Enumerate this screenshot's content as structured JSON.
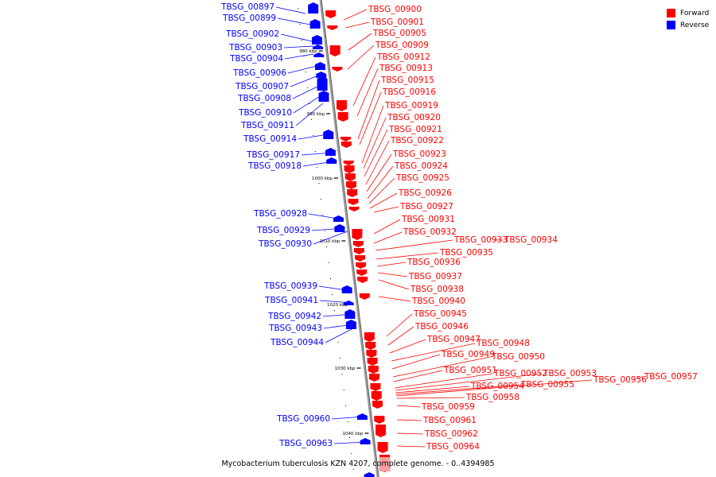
{
  "caption": "Mycobacterium tuberculosis KZN 4207, complete genome. - 0..4394985",
  "legend": [
    {
      "label": "Forward",
      "color": "#ff0000"
    },
    {
      "label": "Reverse",
      "color": "#0000ff"
    }
  ],
  "colors": {
    "forward": "#ff0000",
    "reverse": "#0000ff",
    "backbone": "#9a9a9a"
  },
  "ticks": [
    "980 kbp",
    "990 kbp",
    "1000 kbp",
    "1010 kbp",
    "1020 kbp",
    "1030 kbp",
    "1040 kbp"
  ],
  "genes": [
    {
      "name": "TBSG_00897",
      "strand": "reverse"
    },
    {
      "name": "TBSG_00899",
      "strand": "reverse"
    },
    {
      "name": "TBSG_00902",
      "strand": "reverse"
    },
    {
      "name": "TBSG_00903",
      "strand": "reverse"
    },
    {
      "name": "TBSG_00904",
      "strand": "reverse"
    },
    {
      "name": "TBSG_00906",
      "strand": "reverse"
    },
    {
      "name": "TBSG_00907",
      "strand": "reverse"
    },
    {
      "name": "TBSG_00908",
      "strand": "reverse"
    },
    {
      "name": "TBSG_00910",
      "strand": "reverse"
    },
    {
      "name": "TBSG_00911",
      "strand": "reverse"
    },
    {
      "name": "TBSG_00914",
      "strand": "reverse"
    },
    {
      "name": "TBSG_00917",
      "strand": "reverse"
    },
    {
      "name": "TBSG_00918",
      "strand": "reverse"
    },
    {
      "name": "TBSG_00928",
      "strand": "reverse"
    },
    {
      "name": "TBSG_00929",
      "strand": "reverse"
    },
    {
      "name": "TBSG_00930",
      "strand": "reverse"
    },
    {
      "name": "TBSG_00939",
      "strand": "reverse"
    },
    {
      "name": "TBSG_00941",
      "strand": "reverse"
    },
    {
      "name": "TBSG_00942",
      "strand": "reverse"
    },
    {
      "name": "TBSG_00943",
      "strand": "reverse"
    },
    {
      "name": "TBSG_00944",
      "strand": "reverse"
    },
    {
      "name": "TBSG_00960",
      "strand": "reverse"
    },
    {
      "name": "TBSG_00963",
      "strand": "reverse"
    },
    {
      "name": "TBSG_00900",
      "strand": "forward"
    },
    {
      "name": "TBSG_00901",
      "strand": "forward"
    },
    {
      "name": "TBSG_00905",
      "strand": "forward"
    },
    {
      "name": "TBSG_00909",
      "strand": "forward"
    },
    {
      "name": "TBSG_00912",
      "strand": "forward"
    },
    {
      "name": "TBSG_00913",
      "strand": "forward"
    },
    {
      "name": "TBSG_00915",
      "strand": "forward"
    },
    {
      "name": "TBSG_00916",
      "strand": "forward"
    },
    {
      "name": "TBSG_00919",
      "strand": "forward"
    },
    {
      "name": "TBSG_00920",
      "strand": "forward"
    },
    {
      "name": "TBSG_00921",
      "strand": "forward"
    },
    {
      "name": "TBSG_00922",
      "strand": "forward"
    },
    {
      "name": "TBSG_00923",
      "strand": "forward"
    },
    {
      "name": "TBSG_00924",
      "strand": "forward"
    },
    {
      "name": "TBSG_00925",
      "strand": "forward"
    },
    {
      "name": "TBSG_00926",
      "strand": "forward"
    },
    {
      "name": "TBSG_00927",
      "strand": "forward"
    },
    {
      "name": "TBSG_00931",
      "strand": "forward"
    },
    {
      "name": "TBSG_00932",
      "strand": "forward"
    },
    {
      "name": "TBSG_00933",
      "strand": "forward"
    },
    {
      "name": "TBSG_00934",
      "strand": "forward"
    },
    {
      "name": "TBSG_00935",
      "strand": "forward"
    },
    {
      "name": "TBSG_00936",
      "strand": "forward"
    },
    {
      "name": "TBSG_00937",
      "strand": "forward"
    },
    {
      "name": "TBSG_00938",
      "strand": "forward"
    },
    {
      "name": "TBSG_00940",
      "strand": "forward"
    },
    {
      "name": "TBSG_00945",
      "strand": "forward"
    },
    {
      "name": "TBSG_00946",
      "strand": "forward"
    },
    {
      "name": "TBSG_00947",
      "strand": "forward"
    },
    {
      "name": "TBSG_00948",
      "strand": "forward"
    },
    {
      "name": "TBSG_00949",
      "strand": "forward"
    },
    {
      "name": "TBSG_00950",
      "strand": "forward"
    },
    {
      "name": "TBSG_00951",
      "strand": "forward"
    },
    {
      "name": "TBSG_00952",
      "strand": "forward"
    },
    {
      "name": "TBSG_00953",
      "strand": "forward"
    },
    {
      "name": "TBSG_00954",
      "strand": "forward"
    },
    {
      "name": "TBSG_00955",
      "strand": "forward"
    },
    {
      "name": "TBSG_00956",
      "strand": "forward"
    },
    {
      "name": "TBSG_00957",
      "strand": "forward"
    },
    {
      "name": "TBSG_00958",
      "strand": "forward"
    },
    {
      "name": "TBSG_00959",
      "strand": "forward"
    },
    {
      "name": "TBSG_00961",
      "strand": "forward"
    },
    {
      "name": "TBSG_00962",
      "strand": "forward"
    },
    {
      "name": "TBSG_00964",
      "strand": "forward"
    }
  ]
}
